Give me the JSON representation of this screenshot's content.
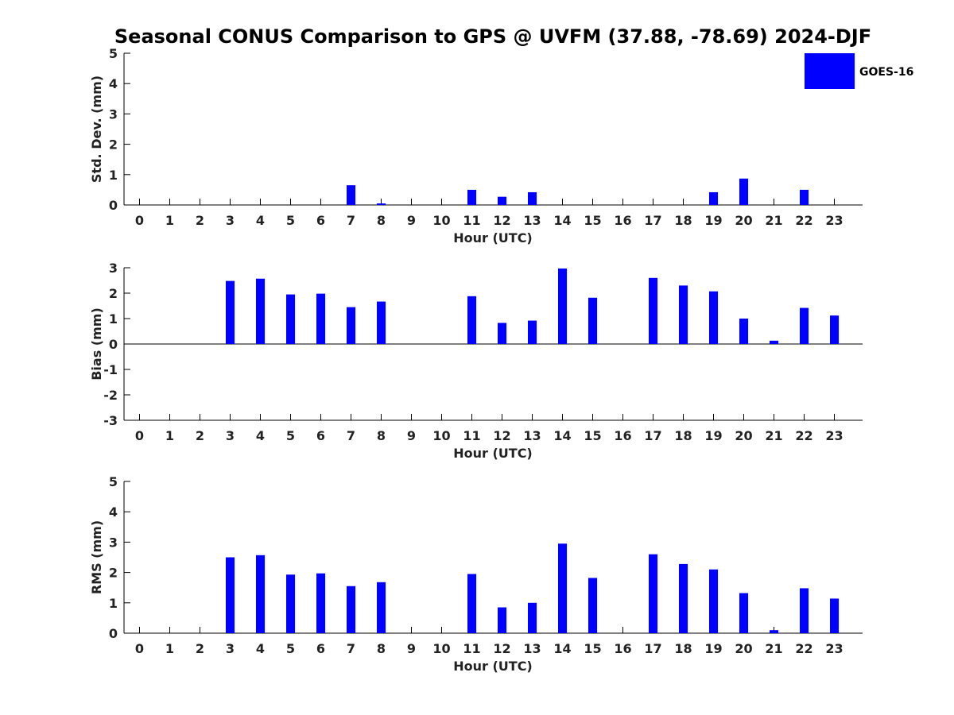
{
  "title": "Seasonal CONUS Comparison to GPS @ UVFM (37.88, -78.69) 2024-DJF",
  "legend": {
    "label": "GOES-16",
    "color": "#0000ff"
  },
  "chart_data": [
    {
      "type": "bar",
      "name": "std-dev",
      "title": "Seasonal CONUS Comparison to GPS @ UVFM (37.88, -78.69) 2024-DJF",
      "xlabel": "Hour (UTC)",
      "ylabel": "Std. Dev. (mm)",
      "ylim": [
        0,
        5
      ],
      "yticks": [
        0,
        1,
        2,
        3,
        4,
        5
      ],
      "categories": [
        "0",
        "1",
        "2",
        "3",
        "4",
        "5",
        "6",
        "7",
        "8",
        "9",
        "10",
        "11",
        "12",
        "13",
        "14",
        "15",
        "16",
        "17",
        "18",
        "19",
        "20",
        "21",
        "22",
        "23"
      ],
      "series": [
        {
          "name": "GOES-16",
          "values": [
            0,
            0,
            0,
            0,
            0,
            0,
            0,
            0.65,
            0.05,
            0,
            0,
            0.5,
            0.27,
            0.42,
            0,
            0,
            0,
            0,
            0,
            0.42,
            0.87,
            0,
            0.5,
            0
          ]
        }
      ]
    },
    {
      "type": "bar",
      "name": "bias",
      "xlabel": "Hour (UTC)",
      "ylabel": "Bias (mm)",
      "ylim": [
        -3,
        3
      ],
      "yticks": [
        -3,
        -2,
        -1,
        0,
        1,
        2,
        3
      ],
      "categories": [
        "0",
        "1",
        "2",
        "3",
        "4",
        "5",
        "6",
        "7",
        "8",
        "9",
        "10",
        "11",
        "12",
        "13",
        "14",
        "15",
        "16",
        "17",
        "18",
        "19",
        "20",
        "21",
        "22",
        "23"
      ],
      "series": [
        {
          "name": "GOES-16",
          "values": [
            0,
            0,
            0,
            2.48,
            2.57,
            1.95,
            1.98,
            1.45,
            1.67,
            0,
            0,
            1.88,
            0.83,
            0.92,
            2.97,
            1.82,
            0,
            2.6,
            2.3,
            2.07,
            1.0,
            0.13,
            1.42,
            1.12
          ]
        }
      ]
    },
    {
      "type": "bar",
      "name": "rms",
      "xlabel": "Hour (UTC)",
      "ylabel": "RMS (mm)",
      "ylim": [
        0,
        5
      ],
      "yticks": [
        0,
        1,
        2,
        3,
        4,
        5
      ],
      "categories": [
        "0",
        "1",
        "2",
        "3",
        "4",
        "5",
        "6",
        "7",
        "8",
        "9",
        "10",
        "11",
        "12",
        "13",
        "14",
        "15",
        "16",
        "17",
        "18",
        "19",
        "20",
        "21",
        "22",
        "23"
      ],
      "series": [
        {
          "name": "GOES-16",
          "values": [
            0,
            0,
            0,
            2.5,
            2.57,
            1.93,
            1.97,
            1.55,
            1.68,
            0,
            0,
            1.95,
            0.85,
            1.0,
            2.95,
            1.82,
            0,
            2.6,
            2.28,
            2.1,
            1.32,
            0.1,
            1.48,
            1.14
          ]
        }
      ]
    }
  ]
}
